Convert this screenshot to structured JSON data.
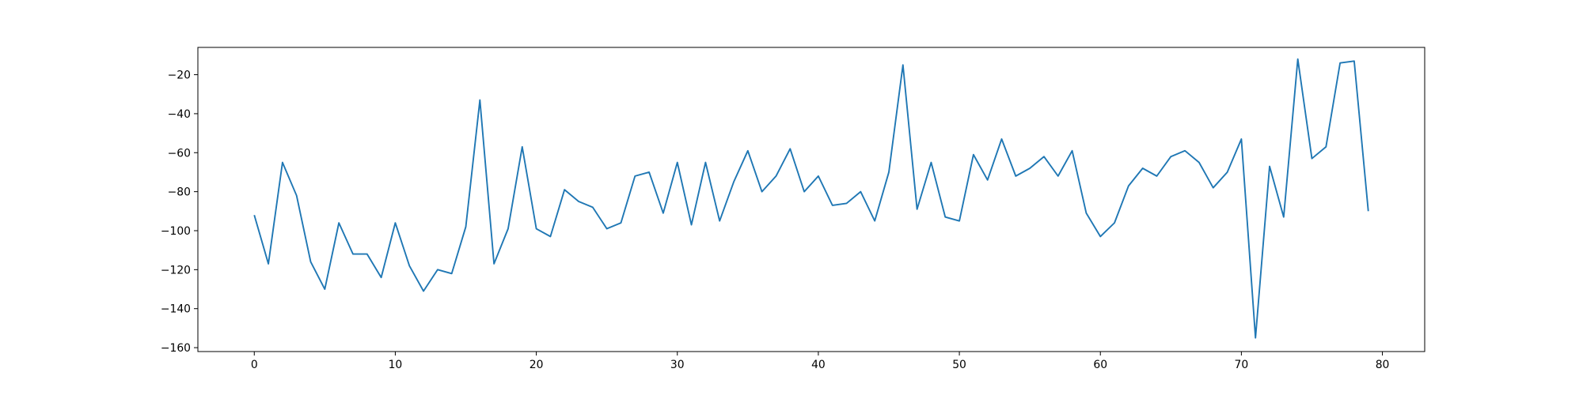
{
  "chart_data": {
    "type": "line",
    "title": "",
    "xlabel": "",
    "ylabel": "",
    "xlim": [
      -4,
      83
    ],
    "ylim": [
      -162,
      -6
    ],
    "xticks": [
      0,
      10,
      20,
      30,
      40,
      50,
      60,
      70,
      80
    ],
    "xtick_labels": [
      "0",
      "10",
      "20",
      "30",
      "40",
      "50",
      "60",
      "70",
      "80"
    ],
    "yticks": [
      -20,
      -40,
      -60,
      -80,
      -100,
      -120,
      -140,
      -160
    ],
    "ytick_labels": [
      "−20",
      "−40",
      "−60",
      "−80",
      "−100",
      "−120",
      "−140",
      "−160"
    ],
    "grid": false,
    "series": [
      {
        "color": "#1f77b4",
        "x": [
          0,
          1,
          2,
          3,
          4,
          5,
          6,
          7,
          8,
          9,
          10,
          11,
          12,
          13,
          14,
          15,
          16,
          17,
          18,
          19,
          20,
          21,
          22,
          23,
          24,
          25,
          26,
          27,
          28,
          29,
          30,
          31,
          32,
          33,
          34,
          35,
          36,
          37,
          38,
          39,
          40,
          41,
          42,
          43,
          44,
          45,
          46,
          47,
          48,
          49,
          50,
          51,
          52,
          53,
          54,
          55,
          56,
          57,
          58,
          59,
          60,
          61,
          62,
          63,
          64,
          65,
          66,
          67,
          68,
          69,
          70,
          71,
          72,
          73,
          74,
          75,
          76,
          77,
          78,
          79
        ],
        "values": [
          -92,
          -117,
          -65,
          -82,
          -116,
          -130,
          -96,
          -112,
          -112,
          -124,
          -96,
          -118,
          -131,
          -120,
          -122,
          -98,
          -33,
          -117,
          -99,
          -57,
          -99,
          -103,
          -79,
          -85,
          -88,
          -99,
          -96,
          -72,
          -70,
          -91,
          -65,
          -97,
          -65,
          -95,
          -75,
          -59,
          -80,
          -72,
          -58,
          -80,
          -72,
          -87,
          -86,
          -80,
          -95,
          -70,
          -15,
          -89,
          -65,
          -93,
          -95,
          -61,
          -74,
          -53,
          -72,
          -68,
          -62,
          -72,
          -59,
          -91,
          -103,
          -96,
          -77,
          -68,
          -72,
          -62,
          -59,
          -65,
          -78,
          -70,
          -53,
          -155,
          -67,
          -93,
          -12,
          -63,
          -57,
          -14,
          -13,
          -90
        ]
      }
    ]
  }
}
